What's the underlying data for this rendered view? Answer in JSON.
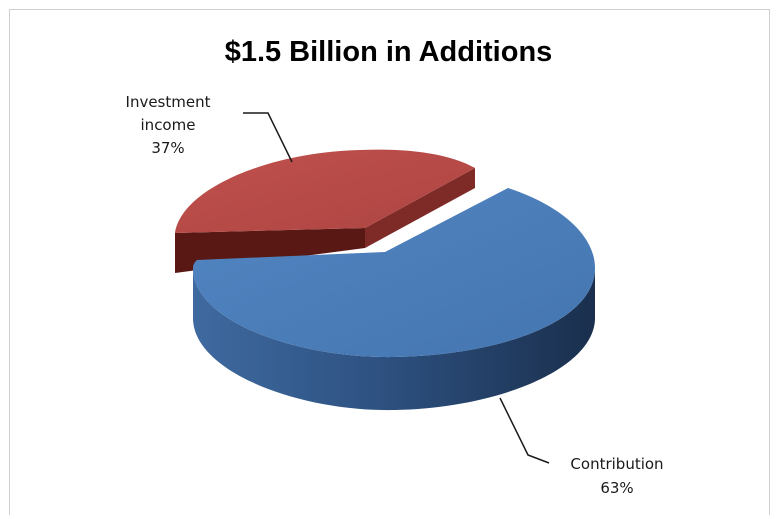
{
  "chart_data": {
    "type": "pie",
    "title": "$1.5 Billion in Additions",
    "slices": [
      {
        "label_lines": [
          "Investment",
          "income"
        ],
        "pct_label": "37%",
        "value": 37,
        "color": "#b84a47"
      },
      {
        "label_lines": [
          "Contribution"
        ],
        "pct_label": "63%",
        "value": 63,
        "color": "#4a7bb5"
      }
    ]
  }
}
